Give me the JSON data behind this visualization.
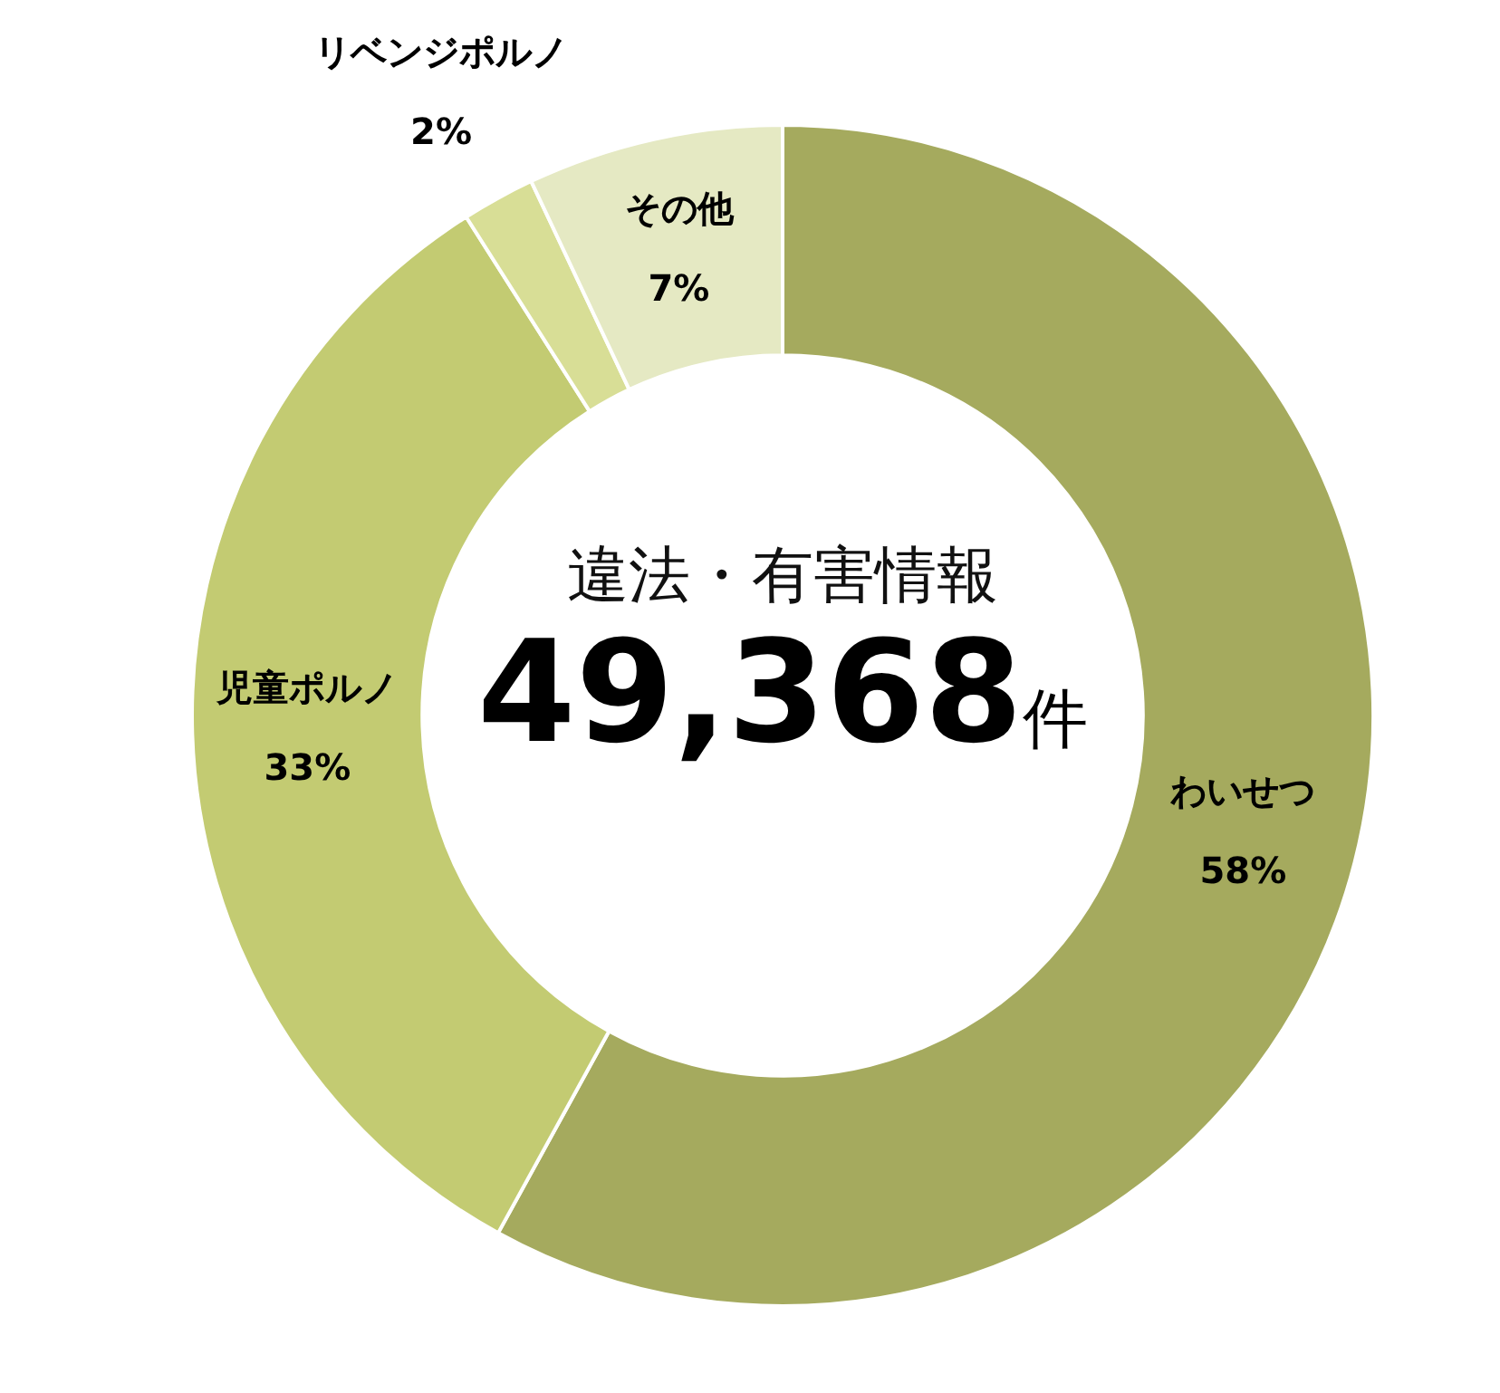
{
  "chart_data": {
    "type": "donut",
    "categories": [
      "わいせつ",
      "児童ポルノ",
      "リベンジポルノ",
      "その他"
    ],
    "values": [
      58,
      33,
      2,
      7
    ],
    "value_labels": [
      "58%",
      "33%",
      "2%",
      "7%"
    ],
    "colors": [
      "#a5aa5e",
      "#c3cb72",
      "#d8de96",
      "#e5e9c3"
    ],
    "annotations": [
      "違法・有害情報",
      "49,368件"
    ],
    "legend": false
  }
}
